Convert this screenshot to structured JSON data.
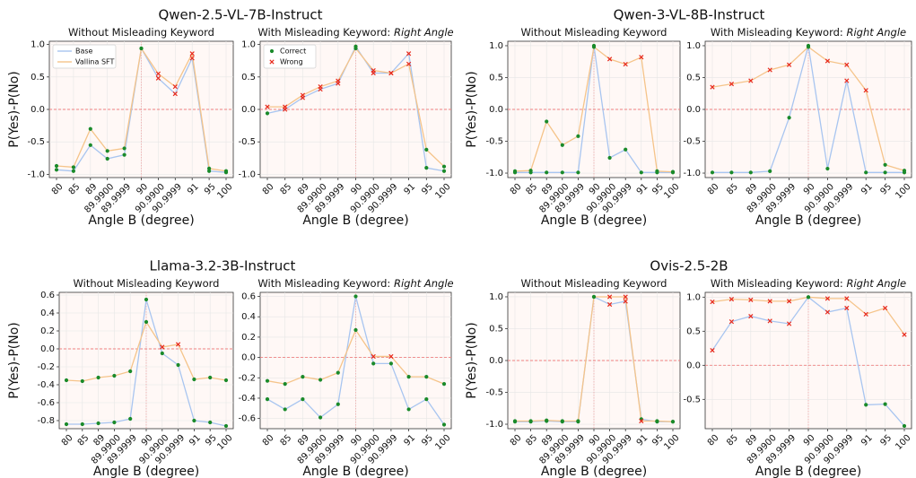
{
  "colors": {
    "base": "#a8c5f0",
    "sft": "#f5c48a",
    "correct": "#1a8a2a",
    "wrong": "#e8291c",
    "zero_line": "#ef8080"
  },
  "figure": {
    "groups": [
      {
        "title": "Qwen-2.5-VL-7B-Instruct"
      },
      {
        "title": "Qwen-3-VL-8B-Instruct"
      },
      {
        "title": "Llama-3.2-3B-Instruct"
      },
      {
        "title": "Ovis-2.5-2B"
      }
    ],
    "ylabel": "P(Yes)-P(No)",
    "xlabel": "Angle B (degree)",
    "subplot_title_plain": "Without Misleading Keyword",
    "subplot_title_prefix": "With Misleading Keyword: ",
    "subplot_title_keyword": "Right Angle",
    "legend_base": "Base",
    "legend_sft": "Vallina SFT",
    "legend_correct": "Correct",
    "legend_wrong": "Wrong"
  },
  "chart_data": [
    {
      "type": "line",
      "model": "Qwen-2.5-VL-7B-Instruct",
      "title": "Without Misleading Keyword",
      "x": [
        "80",
        "85",
        "89",
        "89.9900",
        "89.9999",
        "90",
        "90.9900",
        "90.9999",
        "91",
        "95",
        "100"
      ],
      "ylim": [
        -1.05,
        1.05
      ],
      "yticks": [
        -1.0,
        -0.5,
        0.0,
        0.5,
        1.0
      ],
      "legend": "top-left",
      "series": [
        {
          "name": "Base",
          "values": [
            -0.93,
            -0.95,
            -0.55,
            -0.76,
            -0.7,
            0.94,
            0.48,
            0.24,
            0.79,
            -0.95,
            -0.97
          ],
          "correct": [
            true,
            true,
            true,
            true,
            true,
            true,
            false,
            false,
            false,
            true,
            true
          ]
        },
        {
          "name": "Vallina SFT",
          "values": [
            -0.87,
            -0.89,
            -0.3,
            -0.64,
            -0.6,
            0.94,
            0.55,
            0.35,
            0.86,
            -0.91,
            -0.95
          ],
          "correct": [
            true,
            true,
            true,
            true,
            true,
            true,
            false,
            false,
            false,
            true,
            true
          ]
        }
      ]
    },
    {
      "type": "line",
      "model": "Qwen-2.5-VL-7B-Instruct",
      "title": "With Misleading Keyword: Right Angle",
      "x": [
        "80",
        "85",
        "89",
        "89.9900",
        "89.9999",
        "90",
        "90.9900",
        "90.9999",
        "91",
        "95",
        "100"
      ],
      "ylim": [
        -1.05,
        1.05
      ],
      "yticks": [
        -1.0,
        -0.5,
        0.0,
        0.5,
        1.0
      ],
      "legend": "top-left",
      "series": [
        {
          "name": "Base",
          "values": [
            -0.06,
            0.0,
            0.18,
            0.31,
            0.4,
            0.97,
            0.56,
            0.56,
            0.86,
            -0.9,
            -0.95
          ],
          "correct": [
            true,
            false,
            false,
            false,
            false,
            true,
            false,
            false,
            false,
            true,
            true
          ]
        },
        {
          "name": "Vallina SFT",
          "values": [
            0.04,
            0.04,
            0.22,
            0.35,
            0.44,
            0.94,
            0.6,
            0.56,
            0.7,
            -0.62,
            -0.88
          ],
          "correct": [
            false,
            false,
            false,
            false,
            false,
            true,
            false,
            false,
            false,
            true,
            true
          ]
        }
      ]
    },
    {
      "type": "line",
      "model": "Qwen-3-VL-8B-Instruct",
      "title": "Without Misleading Keyword",
      "x": [
        "80",
        "85",
        "89",
        "89.9900",
        "89.9999",
        "90",
        "90.9900",
        "90.9999",
        "91",
        "95",
        "100"
      ],
      "ylim": [
        -1.07,
        1.07
      ],
      "yticks": [
        -1.0,
        -0.5,
        0.0,
        0.5,
        1.0
      ],
      "series": [
        {
          "name": "Base",
          "values": [
            -0.99,
            -0.99,
            -0.99,
            -0.99,
            -0.99,
            1.0,
            -0.76,
            -0.63,
            -0.99,
            -0.99,
            -0.99
          ],
          "correct": [
            true,
            true,
            true,
            true,
            true,
            true,
            true,
            true,
            true,
            true,
            true
          ]
        },
        {
          "name": "Vallina SFT",
          "values": [
            -0.97,
            -0.96,
            -0.19,
            -0.56,
            -0.42,
            0.98,
            0.79,
            0.71,
            0.82,
            -0.97,
            -0.98
          ],
          "correct": [
            true,
            true,
            true,
            true,
            true,
            true,
            false,
            false,
            false,
            true,
            true
          ]
        }
      ]
    },
    {
      "type": "line",
      "model": "Qwen-3-VL-8B-Instruct",
      "title": "With Misleading Keyword: Right Angle",
      "x": [
        "80",
        "85",
        "89",
        "89.9900",
        "89.9999",
        "90",
        "90.9900",
        "90.9999",
        "91",
        "95",
        "100"
      ],
      "ylim": [
        -1.07,
        1.07
      ],
      "yticks": [
        -1.0,
        -0.5,
        0.0,
        0.5,
        1.0
      ],
      "series": [
        {
          "name": "Base",
          "values": [
            -0.99,
            -0.99,
            -0.99,
            -0.97,
            -0.13,
            1.0,
            -0.93,
            0.45,
            -0.99,
            -0.99,
            -0.99
          ],
          "correct": [
            true,
            true,
            true,
            true,
            true,
            true,
            true,
            false,
            true,
            true,
            true
          ]
        },
        {
          "name": "Vallina SFT",
          "values": [
            0.35,
            0.4,
            0.45,
            0.62,
            0.7,
            0.98,
            0.76,
            0.7,
            0.3,
            -0.87,
            -0.96
          ],
          "correct": [
            false,
            false,
            false,
            false,
            false,
            true,
            false,
            false,
            false,
            true,
            true
          ]
        }
      ]
    },
    {
      "type": "line",
      "model": "Llama-3.2-3B-Instruct",
      "title": "Without Misleading Keyword",
      "x": [
        "80",
        "85",
        "89",
        "89.9900",
        "89.9999",
        "90",
        "90.9900",
        "90.9999",
        "91",
        "95",
        "100"
      ],
      "ylim": [
        -0.89,
        0.63
      ],
      "yticks": [
        -0.8,
        -0.6,
        -0.4,
        -0.2,
        0.0,
        0.2,
        0.4,
        0.6
      ],
      "series": [
        {
          "name": "Base",
          "values": [
            -0.84,
            -0.84,
            -0.83,
            -0.82,
            -0.78,
            0.55,
            -0.05,
            -0.18,
            -0.8,
            -0.82,
            -0.86
          ],
          "correct": [
            true,
            true,
            true,
            true,
            true,
            true,
            true,
            true,
            true,
            true,
            true
          ]
        },
        {
          "name": "Vallina SFT",
          "values": [
            -0.35,
            -0.36,
            -0.32,
            -0.3,
            -0.25,
            0.3,
            0.02,
            0.05,
            -0.34,
            -0.32,
            -0.35
          ],
          "correct": [
            true,
            true,
            true,
            true,
            true,
            true,
            false,
            false,
            true,
            true,
            true
          ]
        }
      ]
    },
    {
      "type": "line",
      "model": "Llama-3.2-3B-Instruct",
      "title": "With Misleading Keyword: Right Angle",
      "x": [
        "80",
        "85",
        "89",
        "89.9900",
        "89.9999",
        "90",
        "90.9900",
        "90.9999",
        "91",
        "95",
        "100"
      ],
      "ylim": [
        -0.7,
        0.64
      ],
      "yticks": [
        -0.6,
        -0.4,
        -0.2,
        0.0,
        0.2,
        0.4,
        0.6
      ],
      "series": [
        {
          "name": "Base",
          "values": [
            -0.41,
            -0.51,
            -0.41,
            -0.59,
            -0.46,
            0.6,
            -0.06,
            -0.06,
            -0.51,
            -0.41,
            -0.66
          ],
          "correct": [
            true,
            true,
            true,
            true,
            true,
            true,
            true,
            true,
            true,
            true,
            true
          ]
        },
        {
          "name": "Vallina SFT",
          "values": [
            -0.23,
            -0.26,
            -0.19,
            -0.22,
            -0.15,
            0.27,
            0.01,
            0.01,
            -0.19,
            -0.19,
            -0.26
          ],
          "correct": [
            true,
            true,
            true,
            true,
            true,
            true,
            false,
            false,
            true,
            true,
            true
          ]
        }
      ]
    },
    {
      "type": "line",
      "model": "Ovis-2.5-2B",
      "title": "Without Misleading Keyword",
      "x": [
        "80",
        "85",
        "89",
        "89.9900",
        "89.9999",
        "90",
        "90.9900",
        "90.9999",
        "91",
        "95",
        "100"
      ],
      "ylim": [
        -1.07,
        1.07
      ],
      "yticks": [
        -1.0,
        -0.5,
        0.0,
        0.5,
        1.0
      ],
      "series": [
        {
          "name": "Base",
          "values": [
            -0.96,
            -0.96,
            -0.95,
            -0.96,
            -0.96,
            1.0,
            0.88,
            0.93,
            -0.92,
            -0.96,
            -0.96
          ],
          "correct": [
            true,
            true,
            true,
            true,
            true,
            true,
            false,
            false,
            true,
            true,
            true
          ]
        },
        {
          "name": "Vallina SFT",
          "values": [
            -0.95,
            -0.95,
            -0.94,
            -0.95,
            -0.95,
            1.0,
            1.0,
            1.0,
            -0.95,
            -0.95,
            -0.96
          ],
          "correct": [
            true,
            true,
            true,
            true,
            true,
            true,
            false,
            false,
            false,
            true,
            true
          ]
        }
      ]
    },
    {
      "type": "line",
      "model": "Ovis-2.5-2B",
      "title": "With Misleading Keyword: Right Angle",
      "x": [
        "80",
        "85",
        "89",
        "89.9900",
        "89.9999",
        "90",
        "90.9900",
        "90.9999",
        "91",
        "95",
        "100"
      ],
      "ylim": [
        -0.93,
        1.07
      ],
      "yticks": [
        -0.5,
        0.0,
        0.5,
        1.0
      ],
      "series": [
        {
          "name": "Base",
          "values": [
            0.22,
            0.64,
            0.72,
            0.65,
            0.61,
            1.0,
            0.78,
            0.84,
            -0.58,
            -0.57,
            -0.89
          ],
          "correct": [
            false,
            false,
            false,
            false,
            false,
            true,
            false,
            false,
            true,
            true,
            true
          ]
        },
        {
          "name": "Vallina SFT",
          "values": [
            0.93,
            0.97,
            0.96,
            0.94,
            0.94,
            1.0,
            0.98,
            0.98,
            0.75,
            0.84,
            0.45
          ],
          "correct": [
            false,
            false,
            false,
            false,
            false,
            true,
            false,
            false,
            false,
            false,
            false
          ]
        }
      ]
    }
  ]
}
